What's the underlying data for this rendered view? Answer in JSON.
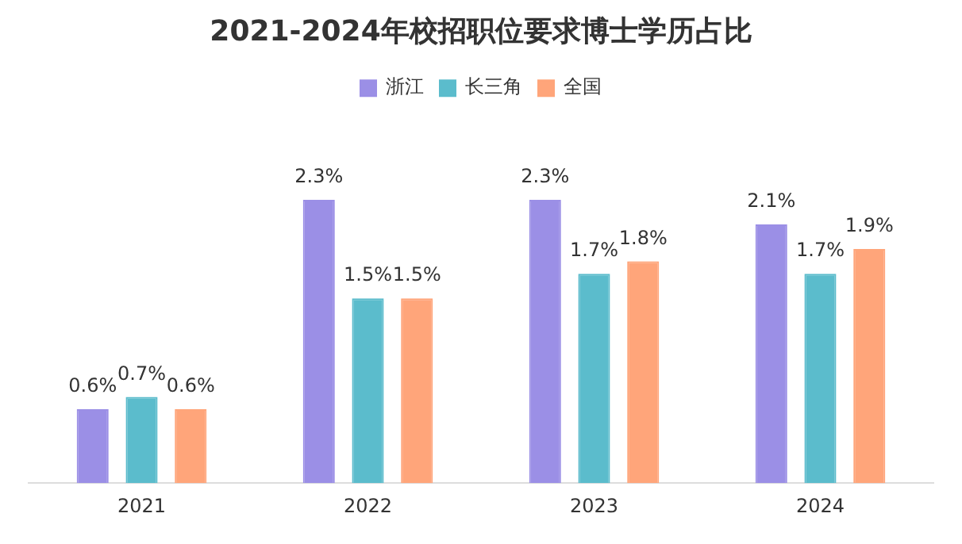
{
  "chart_data": {
    "type": "bar",
    "title": "2021-2024年校招职位要求博士学历占比",
    "categories": [
      "2021",
      "2022",
      "2023",
      "2024"
    ],
    "legend": "top",
    "grid": false,
    "series": [
      {
        "name": "浙江",
        "color": "#9b8fe6",
        "values": [
          0.6,
          2.3,
          2.3,
          2.1
        ],
        "value_labels": [
          "0.6%",
          "2.3%",
          "2.3%",
          "2.1%"
        ]
      },
      {
        "name": "长三角",
        "color": "#5bbccc",
        "values": [
          0.7,
          1.5,
          1.7,
          1.7
        ],
        "value_labels": [
          "0.7%",
          "1.5%",
          "1.7%",
          "1.7%"
        ]
      },
      {
        "name": "全国",
        "color": "#ffa57a",
        "values": [
          0.6,
          1.5,
          1.8,
          1.9
        ],
        "value_labels": [
          "0.6%",
          "1.5%",
          "1.8%",
          "1.9%"
        ]
      }
    ]
  }
}
